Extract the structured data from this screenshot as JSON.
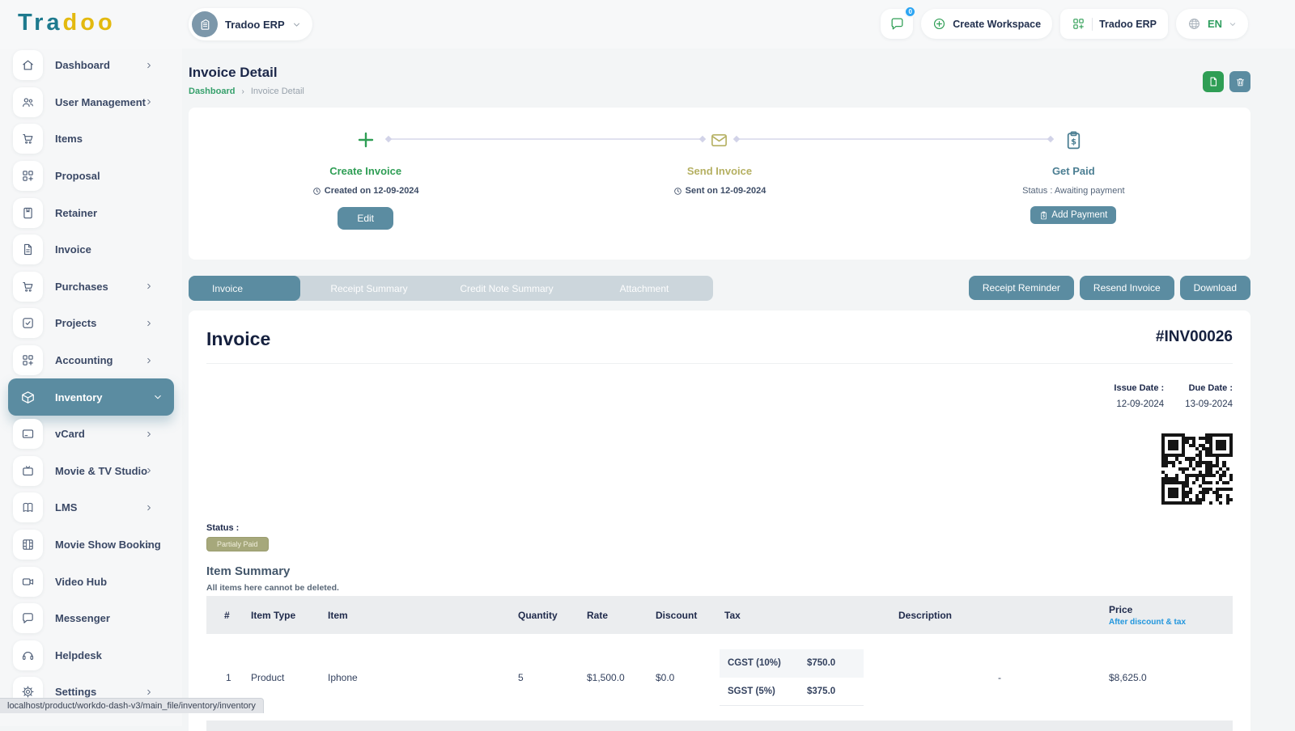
{
  "brand": {
    "logo_part1": "Tra",
    "logo_part2": "doo"
  },
  "topbar": {
    "workspace_selector": "Tradoo ERP",
    "chat_badge": "0",
    "create_workspace_label": "Create Workspace",
    "company_button_label": "Tradoo ERP",
    "language": "EN"
  },
  "sidebar": {
    "items": [
      {
        "label": "Dashboard"
      },
      {
        "label": "User Management"
      },
      {
        "label": "Items"
      },
      {
        "label": "Proposal"
      },
      {
        "label": "Retainer"
      },
      {
        "label": "Invoice"
      },
      {
        "label": "Purchases"
      },
      {
        "label": "Projects"
      },
      {
        "label": "Accounting"
      },
      {
        "label": "Inventory"
      },
      {
        "label": "vCard"
      },
      {
        "label": "Movie & TV Studio"
      },
      {
        "label": "LMS"
      },
      {
        "label": "Movie Show Booking"
      },
      {
        "label": "Video Hub"
      },
      {
        "label": "Messenger"
      },
      {
        "label": "Helpdesk"
      },
      {
        "label": "Settings"
      }
    ],
    "active_item": "Inventory"
  },
  "page": {
    "title": "Invoice Detail",
    "breadcrumb_home": "Dashboard",
    "breadcrumb_current": "Invoice Detail"
  },
  "timeline": {
    "steps": [
      {
        "title": "Create Invoice",
        "subtitle": "Created on 12-09-2024",
        "button": "Edit"
      },
      {
        "title": "Send Invoice",
        "subtitle": "Sent on 12-09-2024"
      },
      {
        "title": "Get Paid",
        "subtitle": "Status : Awaiting payment",
        "button": "Add Payment"
      }
    ]
  },
  "tabs": {
    "items": [
      "Invoice",
      "Receipt Summary",
      "Credit Note Summary",
      "Attachment"
    ],
    "active": "Invoice"
  },
  "actions": {
    "receipt_reminder": "Receipt Reminder",
    "resend_invoice": "Resend Invoice",
    "download": "Download"
  },
  "invoice": {
    "heading": "Invoice",
    "number": "#INV00026",
    "issue_date_label": "Issue Date :",
    "issue_date": "12-09-2024",
    "due_date_label": "Due Date :",
    "due_date": "13-09-2024",
    "status_label": "Status :",
    "status_badge": "Partialy Paid",
    "item_summary_title": "Item Summary",
    "item_summary_note": "All items here cannot be deleted.",
    "table": {
      "headers": [
        "#",
        "Item Type",
        "Item",
        "Quantity",
        "Rate",
        "Discount",
        "Tax",
        "Description",
        "Price"
      ],
      "price_subheader": "After discount & tax",
      "row": {
        "num": "1",
        "item_type": "Product",
        "item": "Iphone",
        "quantity": "5",
        "rate": "$1,500.0",
        "discount": "$0.0",
        "taxes": [
          {
            "name": "CGST (10%)",
            "value": "$750.0"
          },
          {
            "name": "SGST (5%)",
            "value": "$375.0"
          }
        ],
        "description": "-",
        "price": "$8,625.0"
      }
    }
  },
  "statusbar": {
    "url": "localhost/product/workdo-dash-v3/main_file/inventory/inventory"
  },
  "colors": {
    "brand_teal": "#1e7a8e",
    "brand_yellow": "#e3b90f",
    "accent_teal": "#5b8ca1",
    "accent_green": "#2f9e55",
    "olive": "#b5b062",
    "badge_olive": "#a6a87b",
    "heading_navy": "#16213f",
    "price_subheader_blue": "#2196dd"
  }
}
